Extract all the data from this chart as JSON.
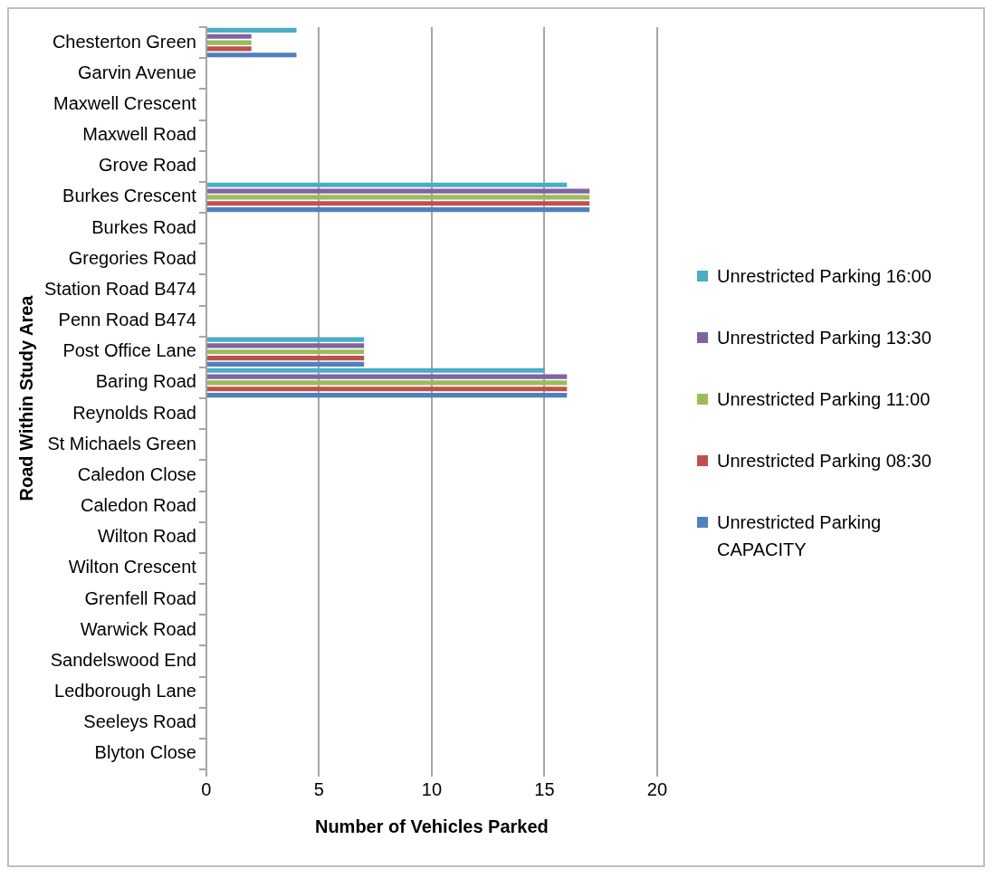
{
  "chart_data": {
    "type": "bar",
    "orientation": "horizontal",
    "xlabel": "Number of Vehicles Parked",
    "ylabel": "Road Within Study Area",
    "categories": [
      "Chesterton Green",
      "Garvin Avenue",
      "Maxwell Crescent",
      "Maxwell Road",
      "Grove Road",
      "Burkes Crescent",
      "Burkes Road",
      "Gregories Road",
      "Station Road B474",
      "Penn Road B474",
      "Post Office Lane",
      "Baring Road",
      "Reynolds Road",
      "St Michaels Green",
      "Caledon Close",
      "Caledon Road",
      "Wilton Road",
      "Wilton Crescent",
      "Grenfell Road",
      "Warwick Road",
      "Sandelswood End",
      "Ledborough Lane",
      "Seeleys Road",
      "Blyton Close"
    ],
    "series": [
      {
        "name": "Unrestricted Parking 16:00",
        "color": "#4bacc6",
        "values": [
          4,
          null,
          null,
          null,
          null,
          16,
          null,
          null,
          null,
          null,
          7,
          15,
          null,
          null,
          null,
          null,
          null,
          null,
          null,
          null,
          null,
          null,
          null,
          null
        ]
      },
      {
        "name": "Unrestricted Parking 13:30",
        "color": "#8064a2",
        "values": [
          2,
          null,
          null,
          null,
          null,
          17,
          null,
          null,
          null,
          null,
          7,
          16,
          null,
          null,
          null,
          null,
          null,
          null,
          null,
          null,
          null,
          null,
          null,
          null
        ]
      },
      {
        "name": "Unrestricted Parking 11:00",
        "color": "#9bbb59",
        "values": [
          2,
          null,
          null,
          null,
          null,
          17,
          null,
          null,
          null,
          null,
          7,
          16,
          null,
          null,
          null,
          null,
          null,
          null,
          null,
          null,
          null,
          null,
          null,
          null
        ]
      },
      {
        "name": "Unrestricted Parking 08:30",
        "color": "#c0504d",
        "values": [
          2,
          null,
          null,
          null,
          null,
          17,
          null,
          null,
          null,
          null,
          7,
          16,
          null,
          null,
          null,
          null,
          null,
          null,
          null,
          null,
          null,
          null,
          null,
          null
        ]
      },
      {
        "name": "Unrestricted Parking CAPACITY",
        "color": "#4f81bd",
        "values": [
          4,
          null,
          null,
          null,
          null,
          17,
          null,
          null,
          null,
          null,
          7,
          16,
          null,
          null,
          null,
          null,
          null,
          null,
          null,
          null,
          null,
          null,
          null,
          null
        ]
      }
    ],
    "xlim": [
      0,
      20
    ],
    "xticks": [
      0,
      5,
      10,
      15,
      20
    ],
    "grid": "x",
    "legend": "right"
  }
}
